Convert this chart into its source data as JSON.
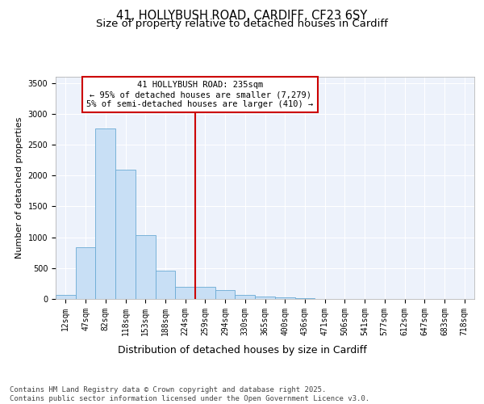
{
  "title_line1": "41, HOLLYBUSH ROAD, CARDIFF, CF23 6SY",
  "title_line2": "Size of property relative to detached houses in Cardiff",
  "xlabel": "Distribution of detached houses by size in Cardiff",
  "ylabel": "Number of detached properties",
  "bin_labels": [
    "12sqm",
    "47sqm",
    "82sqm",
    "118sqm",
    "153sqm",
    "188sqm",
    "224sqm",
    "259sqm",
    "294sqm",
    "330sqm",
    "365sqm",
    "400sqm",
    "436sqm",
    "471sqm",
    "506sqm",
    "541sqm",
    "577sqm",
    "612sqm",
    "647sqm",
    "683sqm",
    "718sqm"
  ],
  "bar_heights": [
    60,
    840,
    2760,
    2100,
    1030,
    460,
    200,
    200,
    140,
    60,
    45,
    20,
    8,
    5,
    4,
    2,
    1,
    0,
    0,
    0,
    0
  ],
  "bar_color": "#c8dff5",
  "bar_edge_color": "#6aaad4",
  "background_color": "#edf2fb",
  "vline_color": "#cc0000",
  "vline_pos": 6.5,
  "annotation_text": "41 HOLLYBUSH ROAD: 235sqm\n← 95% of detached houses are smaller (7,279)\n5% of semi-detached houses are larger (410) →",
  "annotation_box_color": "#cc0000",
  "ylim": [
    0,
    3600
  ],
  "yticks": [
    0,
    500,
    1000,
    1500,
    2000,
    2500,
    3000,
    3500
  ],
  "footer_text": "Contains HM Land Registry data © Crown copyright and database right 2025.\nContains public sector information licensed under the Open Government Licence v3.0.",
  "title_fontsize": 10.5,
  "subtitle_fontsize": 9.5,
  "ylabel_fontsize": 8,
  "xlabel_fontsize": 9,
  "tick_fontsize": 7,
  "annotation_fontsize": 7.5,
  "footer_fontsize": 6.5
}
